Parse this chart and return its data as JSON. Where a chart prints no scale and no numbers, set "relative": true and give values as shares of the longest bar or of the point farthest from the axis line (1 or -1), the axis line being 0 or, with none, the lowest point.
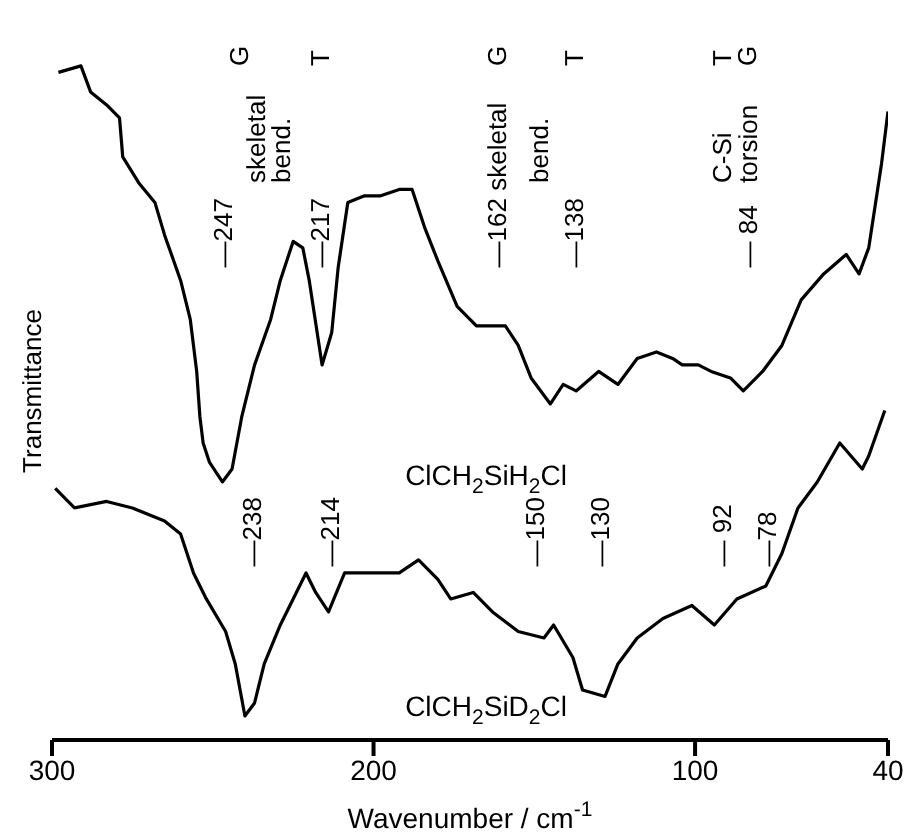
{
  "chart_data": {
    "type": "line",
    "relative": true,
    "xlabel": "Wavenumber / cm$^{-1}$",
    "ylabel": "Transmittance",
    "xlim": [
      300,
      40
    ],
    "xticks": [
      300,
      200,
      100,
      40
    ],
    "series": [
      {
        "name": "ClCH$_{2}$SiH$_{2}$Cl",
        "color": "#000000",
        "x": [
          298,
          291,
          288,
          283,
          279,
          278,
          273,
          268,
          265,
          260,
          257,
          255,
          254,
          253,
          251,
          247,
          244,
          241,
          237,
          232,
          229,
          225,
          222,
          220,
          216,
          213,
          211,
          208,
          203,
          198,
          192,
          188,
          184,
          180,
          174,
          168,
          159,
          155,
          151,
          145,
          141,
          137,
          130,
          124,
          118,
          112,
          107,
          104,
          99,
          95,
          89,
          85,
          79,
          73,
          67,
          60,
          53,
          49,
          46,
          42,
          40
        ],
        "values": [
          0.99,
          1.0,
          0.96,
          0.94,
          0.92,
          0.86,
          0.82,
          0.79,
          0.74,
          0.67,
          0.61,
          0.53,
          0.46,
          0.42,
          0.39,
          0.36,
          0.38,
          0.46,
          0.54,
          0.61,
          0.67,
          0.73,
          0.72,
          0.67,
          0.54,
          0.59,
          0.69,
          0.79,
          0.8,
          0.8,
          0.81,
          0.81,
          0.75,
          0.7,
          0.63,
          0.6,
          0.6,
          0.57,
          0.52,
          0.48,
          0.51,
          0.5,
          0.53,
          0.51,
          0.55,
          0.56,
          0.55,
          0.54,
          0.54,
          0.53,
          0.52,
          0.5,
          0.53,
          0.57,
          0.64,
          0.68,
          0.71,
          0.68,
          0.72,
          0.85,
          0.93
        ]
      },
      {
        "name": "ClCH$_{2}$SiD$_{2}$Cl",
        "color": "#000000",
        "x": [
          299,
          293,
          283,
          275,
          265,
          260,
          256,
          252,
          246,
          243,
          240,
          237,
          234,
          229,
          224,
          221,
          218,
          214,
          209,
          200,
          192,
          186,
          180,
          176,
          169,
          163,
          155,
          147,
          144,
          138,
          135,
          128,
          124,
          118,
          110,
          101,
          94,
          87,
          78,
          73,
          68,
          62,
          55,
          48,
          46,
          41
        ],
        "values": [
          0.35,
          0.32,
          0.33,
          0.32,
          0.3,
          0.28,
          0.22,
          0.18,
          0.13,
          0.08,
          0.0,
          0.02,
          0.08,
          0.14,
          0.19,
          0.22,
          0.19,
          0.16,
          0.22,
          0.22,
          0.22,
          0.24,
          0.21,
          0.18,
          0.19,
          0.16,
          0.13,
          0.12,
          0.14,
          0.09,
          0.04,
          0.03,
          0.08,
          0.12,
          0.15,
          0.17,
          0.14,
          0.18,
          0.2,
          0.25,
          0.32,
          0.36,
          0.42,
          0.38,
          0.4,
          0.47
        ]
      }
    ],
    "annotations": [
      "G",
      "skeletal",
      "bend.",
      "—247",
      "T",
      "—217",
      "G",
      "—162 skeletal",
      "bend.",
      "T",
      "—138",
      "T",
      "C-Si",
      "G",
      "torsion",
      "— 84",
      "—238",
      "—214",
      "—150",
      "—130",
      "— 92",
      "—78"
    ]
  }
}
